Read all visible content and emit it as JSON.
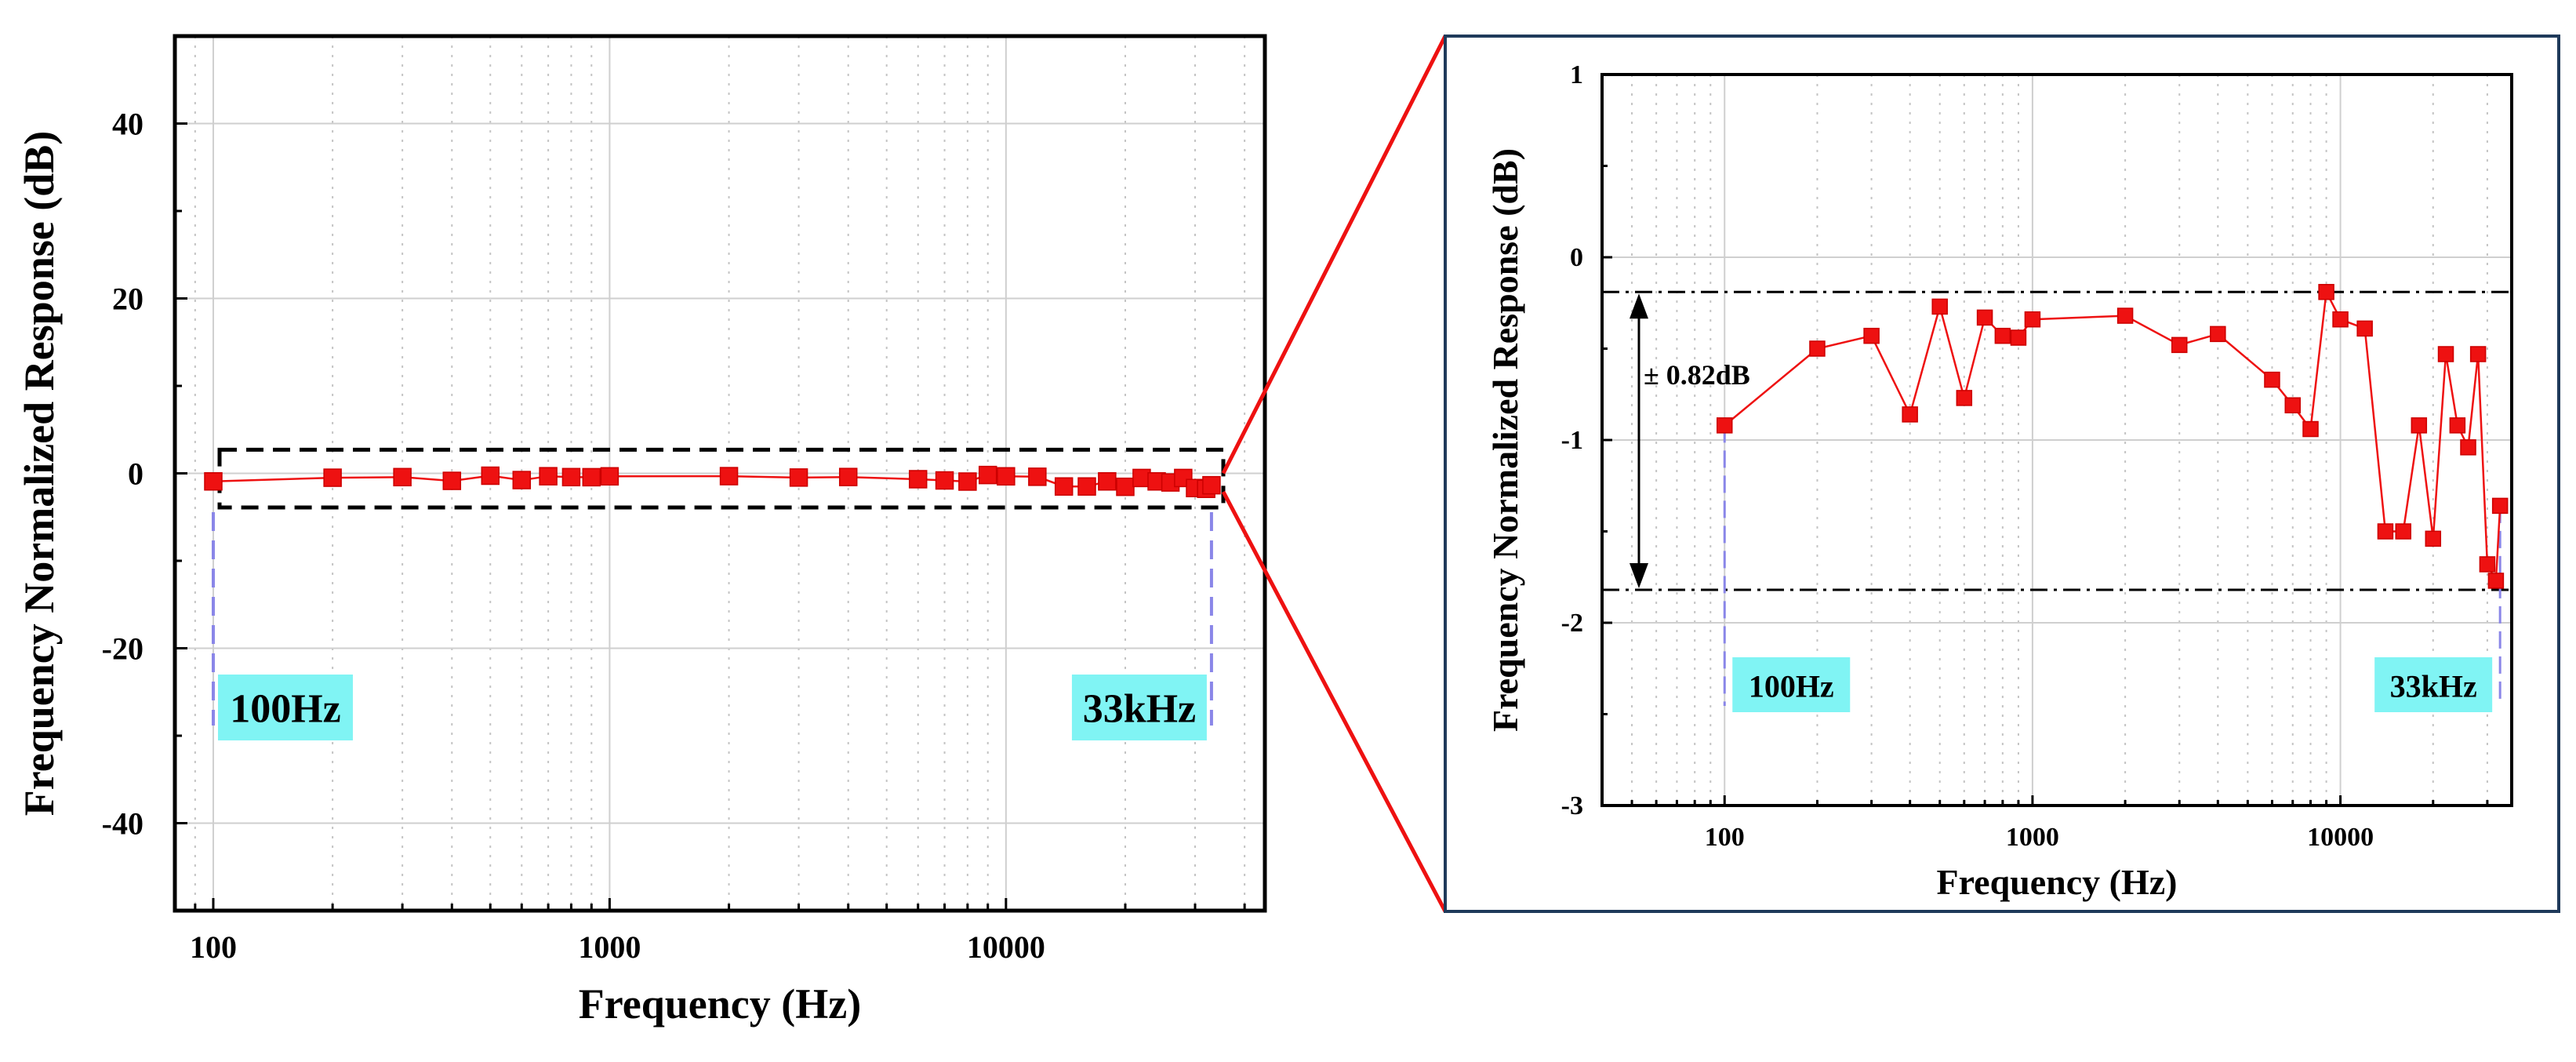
{
  "chart_data": [
    {
      "type": "scatter",
      "name": "full-range",
      "xscale": "log",
      "xlim": [
        80,
        45000
      ],
      "ylim": [
        -50,
        50
      ],
      "xticks": [
        100,
        1000,
        10000
      ],
      "xtick_labels": [
        "100",
        "1000",
        "10000"
      ],
      "yticks": [
        -40,
        -20,
        0,
        20,
        40
      ],
      "ytick_labels": [
        "-40",
        "-20",
        "0",
        "20",
        "40"
      ],
      "xlabel": "Frequency (Hz)",
      "ylabel": "Frequency Normalized Response (dB)",
      "grid": true,
      "series": [
        {
          "name": "response",
          "color": "#ee1111",
          "x": [
            100,
            200,
            300,
            400,
            500,
            600,
            700,
            800,
            900,
            1000,
            2000,
            3000,
            4000,
            6000,
            7000,
            8000,
            9000,
            10000,
            12000,
            14000,
            16000,
            18000,
            20000,
            22000,
            24000,
            26000,
            28000,
            30000,
            32000,
            33000
          ],
          "y": [
            -0.92,
            -0.5,
            -0.43,
            -0.86,
            -0.27,
            -0.77,
            -0.33,
            -0.43,
            -0.44,
            -0.34,
            -0.32,
            -0.48,
            -0.42,
            -0.67,
            -0.81,
            -0.94,
            -0.19,
            -0.34,
            -0.39,
            -1.5,
            -1.5,
            -0.92,
            -1.54,
            -0.53,
            -0.92,
            -1.04,
            -0.53,
            -1.68,
            -1.77,
            -1.36
          ]
        }
      ],
      "annotations": [
        {
          "label": "100Hz",
          "x": 100
        },
        {
          "label": "33kHz",
          "x": 33000
        }
      ]
    },
    {
      "type": "scatter",
      "name": "zoom",
      "xscale": "log",
      "xlim": [
        40,
        36000
      ],
      "ylim": [
        -3,
        1
      ],
      "xticks": [
        100,
        1000,
        10000
      ],
      "xtick_labels": [
        "100",
        "1000",
        "10000"
      ],
      "yticks": [
        -3,
        -2,
        -1,
        0,
        1
      ],
      "ytick_labels": [
        "-3",
        "-2",
        "-1",
        "0",
        "1"
      ],
      "xlabel": "Frequency (Hz)",
      "ylabel": "Frequency Normalized Response (dB)",
      "grid": true,
      "reference_lines": [
        -0.19,
        -1.82
      ],
      "range_label": "± 0.82dB",
      "annotations": [
        {
          "label": "100Hz",
          "x": 100
        },
        {
          "label": "33kHz",
          "x": 33000
        }
      ]
    }
  ],
  "colors": {
    "series": "#ee1111",
    "callout_bg": "#80f4f4",
    "guide": "#8a86e8",
    "frame_border": "#1f3a5a",
    "zoom_line": "#ee1111"
  }
}
